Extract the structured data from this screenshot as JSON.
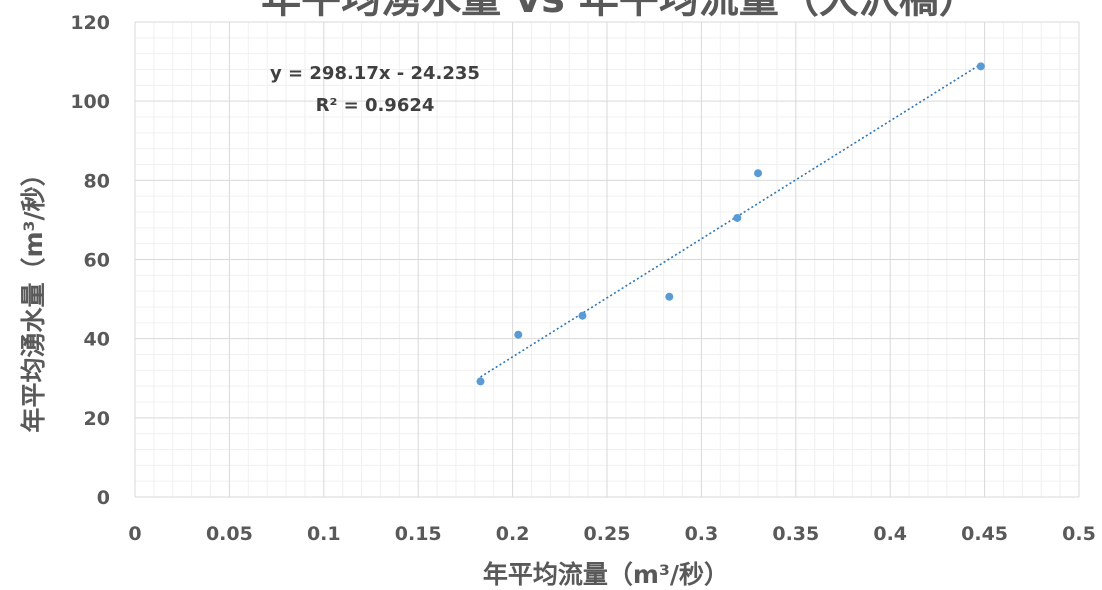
{
  "chart_data": {
    "type": "scatter",
    "title": "年平均湧水量 vs 年平均流量（大沢橋）",
    "xlabel": "年平均流量（m³/秒）",
    "ylabel": "年平均湧水量（m³/秒）",
    "xlim": [
      0,
      0.5
    ],
    "ylim": [
      0,
      120
    ],
    "x_ticks": [
      "0",
      "0.05",
      "0.1",
      "0.15",
      "0.2",
      "0.25",
      "0.3",
      "0.35",
      "0.4",
      "0.45",
      "0.5"
    ],
    "y_ticks": [
      "0",
      "20",
      "40",
      "60",
      "80",
      "100",
      "120"
    ],
    "grid": true,
    "points": [
      {
        "x": 0.183,
        "y": 29.2
      },
      {
        "x": 0.203,
        "y": 41.0
      },
      {
        "x": 0.237,
        "y": 45.8
      },
      {
        "x": 0.283,
        "y": 50.6
      },
      {
        "x": 0.319,
        "y": 70.5
      },
      {
        "x": 0.33,
        "y": 81.8
      },
      {
        "x": 0.448,
        "y": 108.8
      }
    ],
    "trendline": {
      "type": "linear",
      "slope": 298.17,
      "intercept": -24.235,
      "x_range": [
        0.183,
        0.448
      ],
      "equation": "y = 298.17x - 24.235",
      "r_squared": "R² = 0.9624"
    },
    "colors": {
      "marker": "#5b9bd5",
      "trendline": "#2e75b6",
      "major_grid": "#d9d9d9",
      "minor_grid": "#f0f0f0",
      "text": "#595959"
    }
  }
}
